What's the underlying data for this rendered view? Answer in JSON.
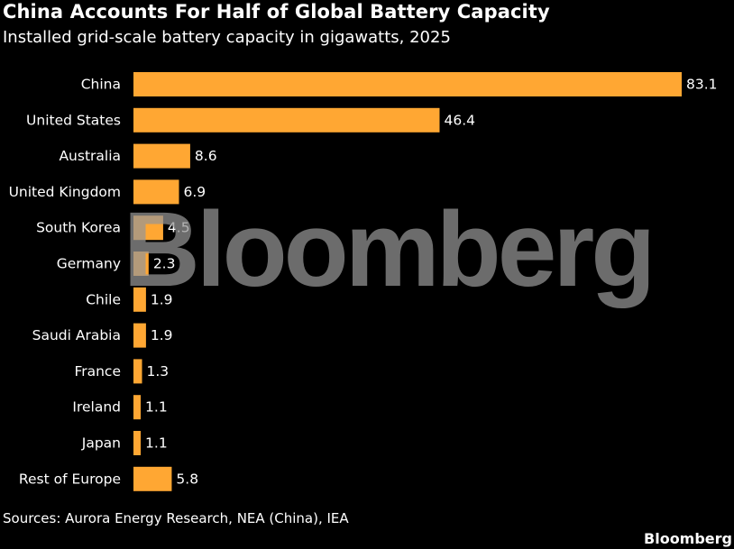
{
  "chart_data": {
    "type": "bar",
    "orientation": "horizontal",
    "title": "China Accounts For Half of Global Battery Capacity",
    "subtitle": "Installed grid-scale battery capacity in gigawatts, 2025",
    "categories": [
      "China",
      "United States",
      "Australia",
      "United Kingdom",
      "South Korea",
      "Germany",
      "Chile",
      "Saudi Arabia",
      "France",
      "Ireland",
      "Japan",
      "Rest of Europe"
    ],
    "values": [
      83.1,
      46.4,
      8.6,
      6.9,
      4.5,
      2.3,
      1.9,
      1.9,
      1.3,
      1.1,
      1.1,
      5.8
    ],
    "value_labels": [
      "83.1",
      "46.4",
      "8.6",
      "6.9",
      "4.5",
      "2.3",
      "1.9",
      "1.9",
      "1.3",
      "1.1",
      "1.1",
      "5.8"
    ],
    "xlim": [
      0,
      83.1
    ],
    "grid": false,
    "source": "Sources: Aurora Energy Research, NEA (China), IEA",
    "bar_color": "#ffa733",
    "background_color": "#000000",
    "text_color": "#ffffff"
  },
  "brand": "Bloomberg",
  "watermark": "Bloomberg"
}
